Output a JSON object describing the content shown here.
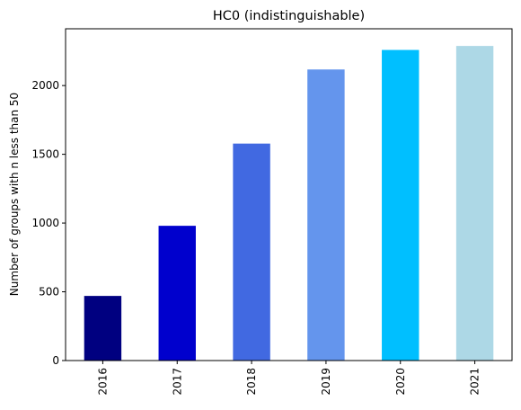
{
  "chart_data": {
    "type": "bar",
    "title": "HC0 (indistinguishable)",
    "xlabel": "",
    "ylabel": "Number of groups with n less than 50",
    "categories": [
      "2016",
      "2017",
      "2018",
      "2019",
      "2020",
      "2021"
    ],
    "values": [
      470,
      980,
      1578,
      2117,
      2259,
      2288
    ],
    "colors": [
      "#000080",
      "#0000cd",
      "#4169e1",
      "#6495ed",
      "#00bfff",
      "#add8e6"
    ],
    "yticks": [
      0,
      500,
      1000,
      1500,
      2000
    ],
    "ylim": [
      0,
      2413
    ],
    "grid": false,
    "legend": "none"
  }
}
